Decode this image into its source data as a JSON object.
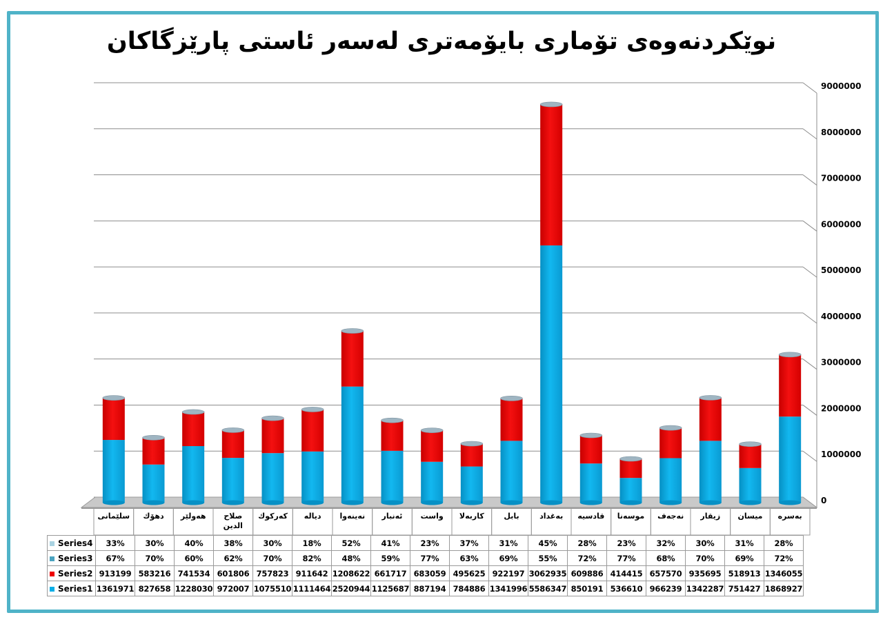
{
  "title": "نوێکردنەوەی تۆماری بایۆمەتری لەسەر ئاستی پارێزگاکان",
  "colors": {
    "frame": "#4fb3c8",
    "series1": "#0aaee6",
    "series2": "#ee0000",
    "series3": "#4aa3c0",
    "series4": "#a9d3e2",
    "grid": "#8c8c8c"
  },
  "chart_data": {
    "type": "bar",
    "stacked": true,
    "style": "3d-cylinder",
    "y_axis_position": "right",
    "ylim": [
      0,
      9000000
    ],
    "y_ticks": [
      "0",
      "1000000",
      "2000000",
      "3000000",
      "4000000",
      "5000000",
      "6000000",
      "7000000",
      "8000000",
      "9000000"
    ],
    "categories": [
      "سلێمانی",
      "دهۆك",
      "هەولێر",
      "صلاح الدين",
      "کەرکوك",
      "دیالە",
      "نەینەوا",
      "ئەنبار",
      "واست",
      "کاربەلا",
      "بابل",
      "بەغداد",
      "قادسیە",
      "موسەنا",
      "نەجەف",
      "زیقار",
      "میسان",
      "بەسرە"
    ],
    "category_lines": [
      [
        "سلێمانی"
      ],
      [
        "دهۆك"
      ],
      [
        "هەولێر"
      ],
      [
        "صلاح",
        "الدين"
      ],
      [
        "کەرکوك"
      ],
      [
        "دیالە"
      ],
      [
        "نەینەوا"
      ],
      [
        "ئەنبار"
      ],
      [
        "واست"
      ],
      [
        "کاربەلا"
      ],
      [
        "بابل"
      ],
      [
        "بەغداد"
      ],
      [
        "قادسیە"
      ],
      [
        "موسەنا"
      ],
      [
        "نەجەف"
      ],
      [
        "زیقار"
      ],
      [
        "میسان"
      ],
      [
        "بەسرە"
      ]
    ],
    "series": [
      {
        "name": "Series4",
        "values": [
          "33%",
          "30%",
          "40%",
          "38%",
          "30%",
          "18%",
          "52%",
          "41%",
          "23%",
          "37%",
          "31%",
          "45%",
          "28%",
          "23%",
          "32%",
          "30%",
          "31%",
          "28%"
        ]
      },
      {
        "name": "Series3",
        "values": [
          "67%",
          "70%",
          "60%",
          "62%",
          "70%",
          "82%",
          "48%",
          "59%",
          "77%",
          "63%",
          "69%",
          "55%",
          "72%",
          "77%",
          "68%",
          "70%",
          "69%",
          "72%"
        ]
      },
      {
        "name": "Series2",
        "values": [
          913199,
          583216,
          741534,
          601806,
          757823,
          911642,
          1208622,
          661717,
          683059,
          495625,
          922197,
          3062935,
          609886,
          414415,
          657570,
          935695,
          518913,
          1346055
        ]
      },
      {
        "name": "Series1",
        "values": [
          1361971,
          827658,
          1228030,
          972007,
          1075510,
          1111464,
          2520944,
          1125687,
          887194,
          784886,
          1341996,
          5586347,
          850191,
          536610,
          966239,
          1342287,
          751427,
          1868927
        ]
      }
    ]
  }
}
